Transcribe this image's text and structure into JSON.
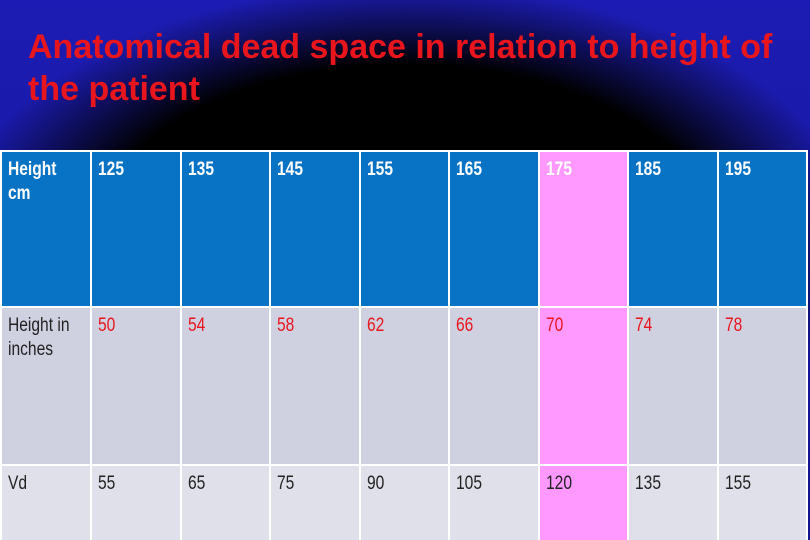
{
  "title": "Anatomical dead space in relation to height of the patient",
  "colors": {
    "background": "#1a1aa8",
    "title": "#e8161c",
    "header_row": "#0872c4",
    "highlight_column": "#ff99ff",
    "inches_values": "#e8161c"
  },
  "highlighted_column": 5,
  "table": {
    "rows": [
      {
        "label": "Height cm",
        "values": [
          "125",
          "135",
          "145",
          "155",
          "165",
          "175",
          "185",
          "195"
        ]
      },
      {
        "label": "Height in\ninches",
        "values": [
          "50",
          "54",
          "58",
          "62",
          "66",
          "70",
          "74",
          "78"
        ]
      },
      {
        "label": "Vd",
        "values": [
          "55",
          "65",
          "75",
          "90",
          "105",
          "120",
          "135",
          "155"
        ]
      }
    ]
  }
}
